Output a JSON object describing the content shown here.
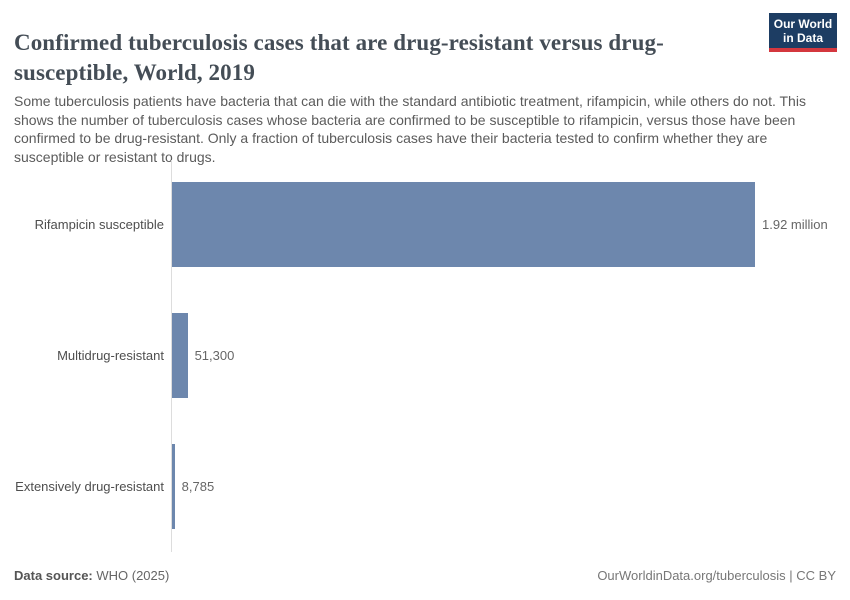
{
  "header": {
    "title": "Confirmed tuberculosis cases that are drug-resistant versus drug-susceptible, World, 2019",
    "subtitle": "Some tuberculosis patients have bacteria that can die with the standard antibiotic treatment, rifampicin, while others do not. This shows the number of tuberculosis cases whose bacteria are confirmed to be susceptible to rifampicin, versus those have been confirmed to be drug-resistant. Only a fraction of tuberculosis cases have their bacteria tested to confirm whether they are susceptible or resistant to drugs.",
    "logo": {
      "line1": "Our World",
      "line2": "in Data"
    }
  },
  "chart_data": {
    "type": "bar",
    "orientation": "horizontal",
    "title": "Confirmed tuberculosis cases that are drug-resistant versus drug-susceptible, World, 2019",
    "categories": [
      "Rifampicin susceptible",
      "Multidrug-resistant",
      "Extensively drug-resistant"
    ],
    "values": [
      1920000,
      51300,
      8785
    ],
    "value_labels": [
      "1.92 million",
      "51,300",
      "8,785"
    ],
    "xlim": [
      0,
      1920000
    ],
    "grid": false,
    "legend": "none",
    "bar_color": "#6d87ad"
  },
  "footer": {
    "source_label": "Data source:",
    "source_value": " WHO (2025)",
    "link": "OurWorldinData.org/tuberculosis",
    "separator": " | ",
    "license": "CC BY"
  },
  "colors": {
    "bar": "#6d87ad",
    "logo_navy": "#1d3d63",
    "logo_red": "#d4373e",
    "axis": "#dddddd",
    "title_text": "#444d56",
    "subtitle_text": "#5b5b5b",
    "label_text": "#4e4e4e",
    "value_text": "#666666",
    "footer_muted": "#777777"
  }
}
